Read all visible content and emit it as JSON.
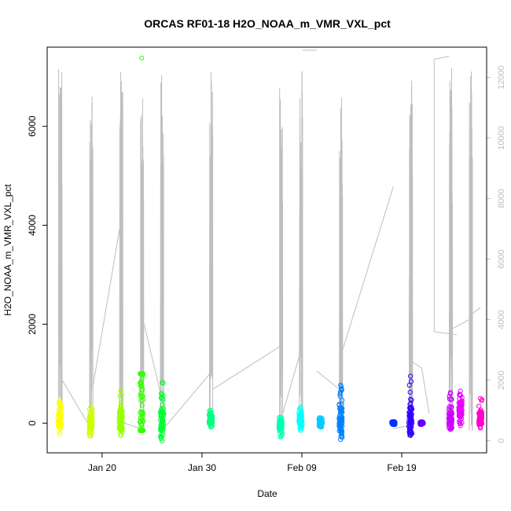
{
  "chart_data": {
    "type": "scatter",
    "title": "ORCAS RF01-18 H2O_NOAA_m_VMR_VXL_pct",
    "xlabel": "Date",
    "ylabel": "H2O_NOAA_m_VMR_VXL_pct",
    "x_ticks": [
      {
        "date": "2016-01-20",
        "label": "Jan 20"
      },
      {
        "date": "2016-01-30",
        "label": "Jan 30"
      },
      {
        "date": "2016-02-09",
        "label": "Feb 09"
      },
      {
        "date": "2016-02-19",
        "label": "Feb 19"
      }
    ],
    "xlim": [
      "2016-01-14T12:00",
      "2016-02-27T12:00"
    ],
    "ylim": [
      -600,
      7600
    ],
    "y_ticks": [
      0,
      2000,
      4000,
      6000
    ],
    "y2_label": "",
    "y2_ticks": [
      0,
      2000,
      4000,
      6000,
      8000,
      10000,
      12000
    ],
    "y2lim": [
      -400,
      13000
    ],
    "grid": false,
    "legend": "none",
    "series": [
      {
        "date": "2016-01-15T18:00",
        "ymin": -220,
        "ymax": 450,
        "mean": 50,
        "color": "#FFFF00"
      },
      {
        "date": "2016-01-18T21:00",
        "ymin": -260,
        "ymax": 330,
        "mean": 20,
        "color": "#CCFF00"
      },
      {
        "date": "2016-01-21T21:00",
        "ymin": -250,
        "ymax": 660,
        "mean": 60,
        "color": "#99FF00"
      },
      {
        "date": "2016-01-23T23:00",
        "ymin": -150,
        "ymax": 7380,
        "mean": 100,
        "color": "#33FF00"
      },
      {
        "date": "2016-01-26T00:00",
        "ymin": -360,
        "ymax": 820,
        "mean": 40,
        "color": "#00FF33"
      },
      {
        "date": "2016-01-30T21:00",
        "ymin": -80,
        "ymax": 260,
        "mean": 80,
        "color": "#00FF80"
      },
      {
        "date": "2016-02-06T21:00",
        "ymin": -280,
        "ymax": 120,
        "mean": -30,
        "color": "#00FFB3"
      },
      {
        "date": "2016-02-08T21:00",
        "ymin": -150,
        "ymax": 320,
        "mean": 80,
        "color": "#00FFFF"
      },
      {
        "date": "2016-02-10T21:00",
        "ymin": -80,
        "ymax": 110,
        "mean": 20,
        "color": "#00CCFF"
      },
      {
        "date": "2016-02-12T21:00",
        "ymin": -330,
        "ymax": 770,
        "mean": 60,
        "color": "#0080FF"
      },
      {
        "date": "2016-02-18T04:00",
        "ymin": -30,
        "ymax": 30,
        "mean": 0,
        "color": "#0033FF"
      },
      {
        "date": "2016-02-19T21:00",
        "ymin": -250,
        "ymax": 950,
        "mean": 50,
        "color": "#3300FF"
      },
      {
        "date": "2016-02-21T00:00",
        "ymin": -30,
        "ymax": 30,
        "mean": 0,
        "color": "#6600FF"
      },
      {
        "date": "2016-02-23T21:00",
        "ymin": -130,
        "ymax": 620,
        "mean": 40,
        "color": "#CC00FF"
      },
      {
        "date": "2016-02-24T21:00",
        "ymin": -50,
        "ymax": 650,
        "mean": 280,
        "color": "#E600FF"
      },
      {
        "date": "2016-02-26T21:00",
        "ymin": -100,
        "ymax": 500,
        "mean": 100,
        "color": "#FF00CC"
      }
    ],
    "altitude_line": {
      "color": "#BEBEBE",
      "flights": [
        {
          "start": "2016-01-15T15:00",
          "end": "2016-01-16T00:00",
          "max": 12300
        },
        {
          "start": "2016-01-18T18:00",
          "end": "2016-01-19T02:00",
          "max": 12100
        },
        {
          "start": "2016-01-21T18:00",
          "end": "2016-01-22T02:00",
          "max": 12200
        },
        {
          "start": "2016-01-23T20:00",
          "end": "2016-01-24T04:00",
          "max": 12300
        },
        {
          "start": "2016-01-25T20:00",
          "end": "2016-01-26T04:00",
          "max": 12200
        },
        {
          "start": "2016-01-30T18:00",
          "end": "2016-01-31T02:00",
          "max": 12400
        },
        {
          "start": "2016-02-06T18:00",
          "end": "2016-02-07T02:00",
          "max": 12100
        },
        {
          "start": "2016-02-08T18:00",
          "end": "2016-02-09T02:00",
          "max": 12300
        },
        {
          "start": "2016-02-12T18:00",
          "end": "2016-02-13T02:00",
          "max": 12000
        },
        {
          "start": "2016-02-19T18:00",
          "end": "2016-02-20T02:00",
          "max": 12200
        },
        {
          "start": "2016-02-23T18:00",
          "end": "2016-02-24T02:00",
          "max": 12500
        },
        {
          "start": "2016-02-25T18:00",
          "end": "2016-02-26T02:00",
          "max": 12400
        }
      ],
      "connectors": [
        [
          "2016-01-16T00:00",
          2000,
          "2016-01-18T21:00",
          400
        ],
        [
          "2016-01-19T02:00",
          1800,
          "2016-01-21T18:00",
          7000
        ],
        [
          "2016-01-22T02:00",
          600,
          "2016-01-23T20:00",
          400
        ],
        [
          "2016-01-24T04:00",
          3900,
          "2016-01-25T20:00",
          1600
        ],
        [
          "2016-01-26T04:00",
          400,
          "2016-01-30T18:00",
          2200
        ],
        [
          "2016-01-31T02:00",
          1700,
          "2016-02-06T18:00",
          3100
        ],
        [
          "2016-02-07T02:00",
          900,
          "2016-02-08T18:00",
          2800
        ],
        [
          "2016-02-09T02:00",
          12900,
          "2016-02-10T12:00",
          12900
        ],
        [
          "2016-02-10T12:00",
          2300,
          "2016-02-12T18:00",
          1700
        ],
        [
          "2016-02-13T02:00",
          3000,
          "2016-02-18T04:00",
          8400
        ],
        [
          "2016-02-18T04:00",
          400,
          "2016-02-19T18:00",
          500
        ],
        [
          "2016-02-20T02:00",
          2600,
          "2016-02-21T00:00",
          2400
        ],
        [
          "2016-02-21T00:00",
          2400,
          "2016-02-21T18:00",
          900
        ],
        [
          "2016-02-22T06:00",
          12600,
          "2016-02-23T18:00",
          12700
        ],
        [
          "2016-02-22T06:00",
          12600,
          "2016-02-22T06:00",
          3600
        ],
        [
          "2016-02-22T06:00",
          3600,
          "2016-02-24T12:00",
          3500
        ],
        [
          "2016-02-24T02:00",
          3700,
          "2016-02-25T18:00",
          4000
        ],
        [
          "2016-02-26T02:00",
          4200,
          "2016-02-26T21:00",
          4400
        ]
      ]
    }
  }
}
